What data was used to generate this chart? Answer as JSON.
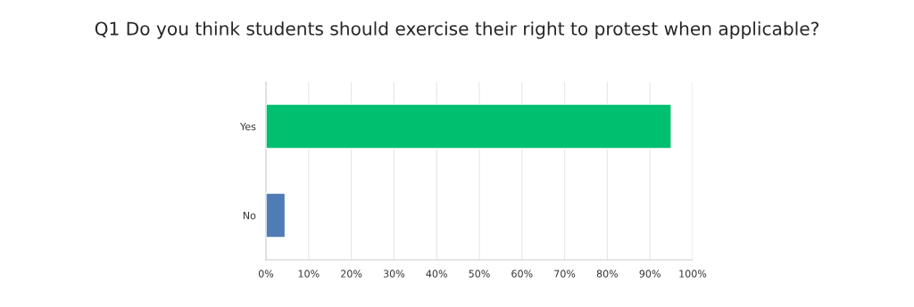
{
  "chart_data": {
    "type": "bar",
    "orientation": "horizontal",
    "title": "Q1 Do you think students should exercise their right to protest when applicable?",
    "categories": [
      "Yes",
      "No"
    ],
    "values": [
      95,
      4.5
    ],
    "colors": [
      "#00bf6f",
      "#507cb6"
    ],
    "xlim": [
      0,
      100
    ],
    "xticks": [
      {
        "value": 0,
        "label": "0%"
      },
      {
        "value": 10,
        "label": "10%"
      },
      {
        "value": 20,
        "label": "20%"
      },
      {
        "value": 30,
        "label": "30%"
      },
      {
        "value": 40,
        "label": "40%"
      },
      {
        "value": 50,
        "label": "50%"
      },
      {
        "value": 60,
        "label": "60%"
      },
      {
        "value": 70,
        "label": "70%"
      },
      {
        "value": 80,
        "label": "80%"
      },
      {
        "value": 90,
        "label": "90%"
      },
      {
        "value": 100,
        "label": "100%"
      }
    ],
    "grid": "x"
  }
}
